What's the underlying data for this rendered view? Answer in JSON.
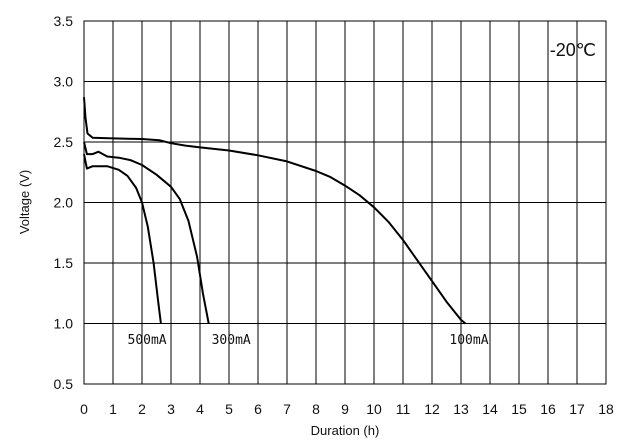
{
  "chart_data": {
    "type": "line",
    "xlabel": "Duration (h)",
    "ylabel": "Voltage (V)",
    "xlim": [
      0,
      18
    ],
    "ylim": [
      0.5,
      3.5
    ],
    "x_ticks": [
      "0",
      "1",
      "2",
      "3",
      "4",
      "5",
      "6",
      "7",
      "8",
      "9",
      "10",
      "11",
      "12",
      "13",
      "14",
      "15",
      "16",
      "17",
      "18"
    ],
    "y_ticks": [
      "0.5",
      "1.0",
      "1.5",
      "2.0",
      "2.5",
      "3.0",
      "3.5"
    ],
    "grid": true,
    "annotation": "-20℃",
    "series": [
      {
        "name": "100mA",
        "points": [
          [
            0.0,
            2.87
          ],
          [
            0.05,
            2.7
          ],
          [
            0.12,
            2.57
          ],
          [
            0.3,
            2.535
          ],
          [
            1,
            2.53
          ],
          [
            2,
            2.525
          ],
          [
            2.6,
            2.515
          ],
          [
            3,
            2.49
          ],
          [
            3.5,
            2.47
          ],
          [
            4,
            2.455
          ],
          [
            5,
            2.43
          ],
          [
            6,
            2.39
          ],
          [
            7,
            2.34
          ],
          [
            8,
            2.26
          ],
          [
            8.5,
            2.21
          ],
          [
            9,
            2.14
          ],
          [
            9.5,
            2.06
          ],
          [
            10,
            1.96
          ],
          [
            10.5,
            1.84
          ],
          [
            11,
            1.69
          ],
          [
            11.5,
            1.52
          ],
          [
            12,
            1.35
          ],
          [
            12.5,
            1.18
          ],
          [
            13,
            1.03
          ],
          [
            13.15,
            1.0
          ]
        ]
      },
      {
        "name": "300mA",
        "points": [
          [
            0.0,
            2.5
          ],
          [
            0.1,
            2.4
          ],
          [
            0.3,
            2.4
          ],
          [
            0.5,
            2.42
          ],
          [
            0.8,
            2.38
          ],
          [
            1.2,
            2.37
          ],
          [
            1.6,
            2.35
          ],
          [
            2,
            2.31
          ],
          [
            2.5,
            2.23
          ],
          [
            3,
            2.13
          ],
          [
            3.3,
            2.03
          ],
          [
            3.6,
            1.85
          ],
          [
            3.9,
            1.55
          ],
          [
            4.1,
            1.25
          ],
          [
            4.3,
            1.0
          ]
        ]
      },
      {
        "name": "500mA",
        "points": [
          [
            0.0,
            2.4
          ],
          [
            0.1,
            2.28
          ],
          [
            0.3,
            2.3
          ],
          [
            0.8,
            2.3
          ],
          [
            1.2,
            2.27
          ],
          [
            1.5,
            2.22
          ],
          [
            1.8,
            2.12
          ],
          [
            2.0,
            2.0
          ],
          [
            2.2,
            1.8
          ],
          [
            2.4,
            1.5
          ],
          [
            2.55,
            1.2
          ],
          [
            2.65,
            1.0
          ]
        ]
      }
    ],
    "series_labels": [
      {
        "text": "500mA",
        "x": 1.5,
        "y": 0.83
      },
      {
        "text": "300mA",
        "x": 4.4,
        "y": 0.83
      },
      {
        "text": "100mA",
        "x": 12.6,
        "y": 0.83
      }
    ]
  }
}
